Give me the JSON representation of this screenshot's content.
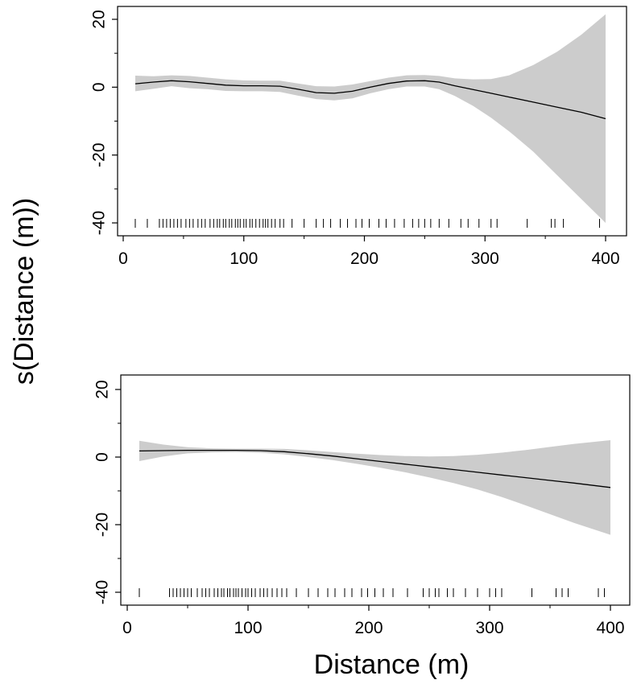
{
  "figure": {
    "ylabel": "s(Distance (m))",
    "xlabel": "Distance (m)"
  },
  "colors": {
    "band": "#cccccc",
    "line": "#000000",
    "frame": "#000000",
    "rug": "#000000"
  },
  "chart_data": [
    {
      "type": "line",
      "xlim": [
        0,
        410
      ],
      "ylim": [
        -40,
        20
      ],
      "xticks": [
        0,
        100,
        200,
        300,
        400
      ],
      "yticks": [
        -40,
        -20,
        0,
        20
      ],
      "grid": false,
      "series": [
        {
          "x": [
            10,
            25,
            40,
            55,
            70,
            85,
            100,
            115,
            130,
            145,
            160,
            175,
            190,
            205,
            220,
            235,
            250,
            262,
            275,
            290,
            305,
            320,
            340,
            360,
            380,
            400
          ],
          "y": [
            1.0,
            1.5,
            1.9,
            1.6,
            1.1,
            0.6,
            0.4,
            0.4,
            0.3,
            -0.6,
            -1.6,
            -1.8,
            -1.2,
            0.0,
            1.1,
            1.8,
            1.9,
            1.5,
            0.4,
            -0.7,
            -1.8,
            -2.9,
            -4.4,
            -5.9,
            -7.4,
            -9.3
          ],
          "lower": [
            -1.2,
            -0.5,
            0.3,
            -0.3,
            -0.6,
            -1.1,
            -1.2,
            -1.2,
            -1.4,
            -2.5,
            -3.5,
            -3.9,
            -3.3,
            -1.8,
            -0.6,
            0.2,
            0.2,
            -0.6,
            -2.6,
            -5.5,
            -9.0,
            -13.0,
            -19.0,
            -26.0,
            -33.0,
            -40.0
          ],
          "upper": [
            3.4,
            3.2,
            3.5,
            3.3,
            2.8,
            2.3,
            2.0,
            1.9,
            1.9,
            1.1,
            0.3,
            0.2,
            0.8,
            1.8,
            2.8,
            3.5,
            3.6,
            3.3,
            2.6,
            2.3,
            2.4,
            3.5,
            6.5,
            10.5,
            15.5,
            21.5
          ]
        }
      ],
      "rug": [
        10,
        20,
        30,
        33,
        36,
        39,
        42,
        45,
        48,
        52,
        55,
        58,
        62,
        65,
        68,
        72,
        75,
        78,
        80,
        83,
        85,
        88,
        90,
        93,
        95,
        97,
        100,
        102,
        105,
        107,
        110,
        113,
        116,
        118,
        120,
        123,
        126,
        130,
        133,
        140,
        150,
        160,
        166,
        172,
        180,
        186,
        193,
        198,
        204,
        212,
        218,
        225,
        233,
        240,
        245,
        250,
        255,
        262,
        270,
        280,
        286,
        295,
        305,
        310,
        335,
        355,
        358,
        365,
        395
      ]
    },
    {
      "type": "line",
      "xlim": [
        0,
        410
      ],
      "ylim": [
        -40,
        20
      ],
      "xticks": [
        0,
        100,
        200,
        300,
        400
      ],
      "yticks": [
        -40,
        -20,
        0,
        20
      ],
      "grid": false,
      "series": [
        {
          "x": [
            10,
            30,
            50,
            70,
            90,
            110,
            130,
            150,
            170,
            190,
            210,
            230,
            250,
            270,
            290,
            310,
            330,
            350,
            370,
            400
          ],
          "y": [
            1.8,
            1.9,
            2.0,
            2.0,
            2.0,
            1.9,
            1.6,
            1.0,
            0.3,
            -0.5,
            -1.3,
            -2.1,
            -2.9,
            -3.7,
            -4.5,
            -5.3,
            -6.1,
            -6.9,
            -7.7,
            -9.0
          ],
          "lower": [
            -1.2,
            0.2,
            1.1,
            1.4,
            1.5,
            1.3,
            0.8,
            0.0,
            -0.9,
            -2.0,
            -3.2,
            -4.5,
            -6.0,
            -7.7,
            -9.6,
            -11.8,
            -14.3,
            -16.9,
            -19.5,
            -23.0
          ],
          "upper": [
            4.8,
            3.7,
            2.9,
            2.6,
            2.5,
            2.5,
            2.4,
            2.0,
            1.5,
            1.0,
            0.6,
            0.3,
            0.2,
            0.3,
            0.7,
            1.3,
            2.1,
            3.0,
            3.9,
            5.0
          ]
        }
      ],
      "rug": [
        10,
        35,
        38,
        41,
        44,
        47,
        50,
        53,
        58,
        62,
        65,
        68,
        72,
        75,
        78,
        80,
        83,
        85,
        88,
        90,
        92,
        95,
        98,
        100,
        103,
        106,
        110,
        113,
        116,
        120,
        124,
        128,
        132,
        140,
        150,
        158,
        166,
        172,
        180,
        186,
        194,
        199,
        205,
        212,
        220,
        232,
        245,
        250,
        255,
        258,
        265,
        270,
        280,
        290,
        300,
        305,
        310,
        335,
        355,
        360,
        365,
        390,
        395
      ]
    }
  ]
}
